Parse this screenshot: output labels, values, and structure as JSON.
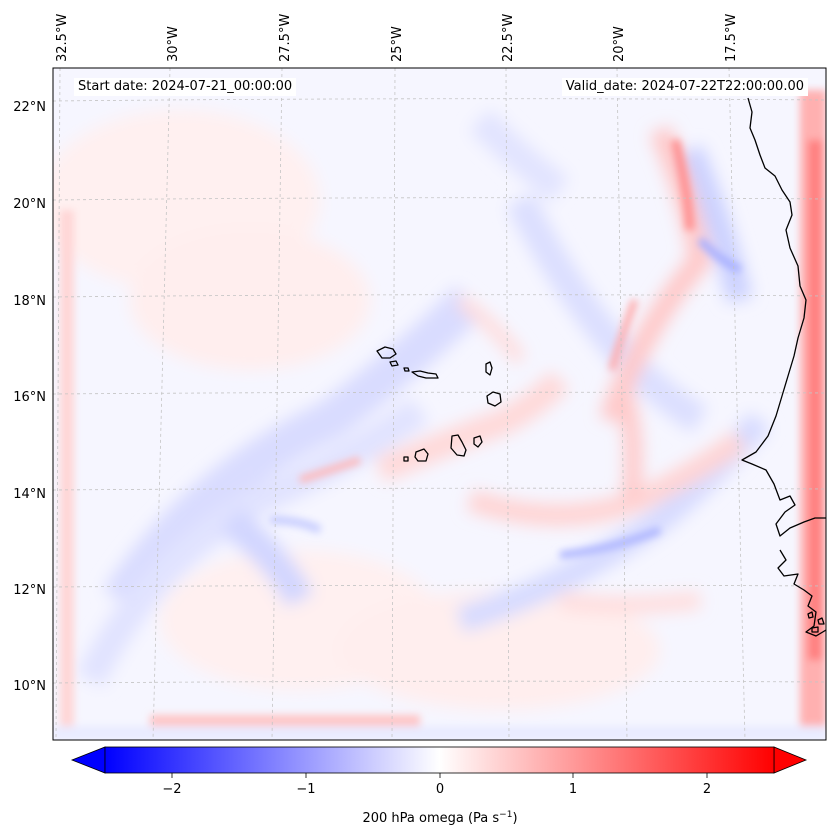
{
  "map": {
    "start_date": "Start date: 2024-07-21_00:00:00",
    "valid_date": "Valid_date: 2024-07-22T22:00:00.00",
    "lon_labels": [
      "32.5°W",
      "30°W",
      "27.5°W",
      "25°W",
      "22.5°W",
      "20°W",
      "17.5°W"
    ],
    "lat_labels": [
      "22°N",
      "20°N",
      "18°N",
      "16°N",
      "14°N",
      "12°N",
      "10°N"
    ],
    "lat_values": [
      22,
      20,
      18,
      16,
      14,
      12,
      10
    ],
    "lon_values": [
      -32.5,
      -30,
      -27.5,
      -25,
      -22.5,
      -20,
      -17.5
    ],
    "gridlines": true,
    "projection": "regional (Cape Verde / West Africa)"
  },
  "colorbar": {
    "label_main": "200 hPa omega (Pa s",
    "label_exp": "−1",
    "label_close": ")",
    "ticks": [
      "−2",
      "−1",
      "0",
      "1",
      "2"
    ],
    "tick_values": [
      -2,
      -1,
      0,
      1,
      2
    ],
    "vmin": -2.5,
    "vmax": 2.5,
    "extend": "both",
    "colormap": "bwr",
    "color_low": "#0000ff",
    "color_mid": "#ffffff",
    "color_high": "#ff0000"
  }
}
